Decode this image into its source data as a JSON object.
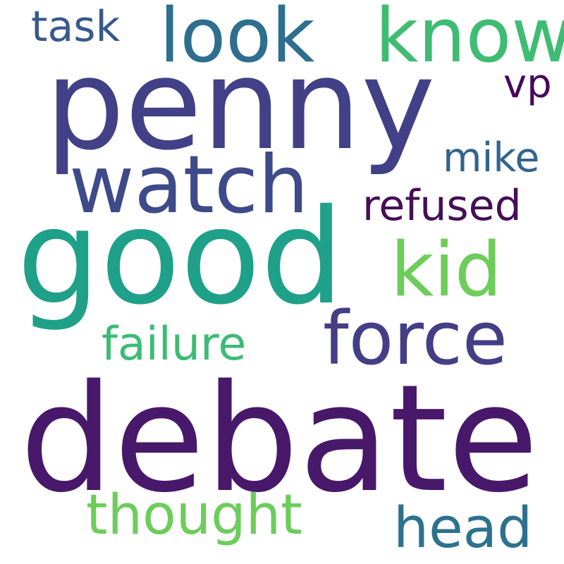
{
  "words": [
    {
      "text": "debate",
      "color": "#48186a"
    },
    {
      "text": "penny",
      "color": "#424086"
    },
    {
      "text": "good",
      "color": "#1fa088"
    },
    {
      "text": "watch",
      "color": "#3e4a89"
    },
    {
      "text": "force",
      "color": "#433e85"
    },
    {
      "text": "look",
      "color": "#2e6e8e"
    },
    {
      "text": "know",
      "color": "#3fbc73"
    },
    {
      "text": "kid",
      "color": "#6ccd5a"
    },
    {
      "text": "thought",
      "color": "#6ccd5a"
    },
    {
      "text": "head",
      "color": "#2c728e"
    },
    {
      "text": "failure",
      "color": "#3cbb75"
    },
    {
      "text": "refused",
      "color": "#440f55"
    },
    {
      "text": "mike",
      "color": "#32658e"
    },
    {
      "text": "task",
      "color": "#38598c"
    },
    {
      "text": "vp",
      "color": "#46085c"
    }
  ]
}
